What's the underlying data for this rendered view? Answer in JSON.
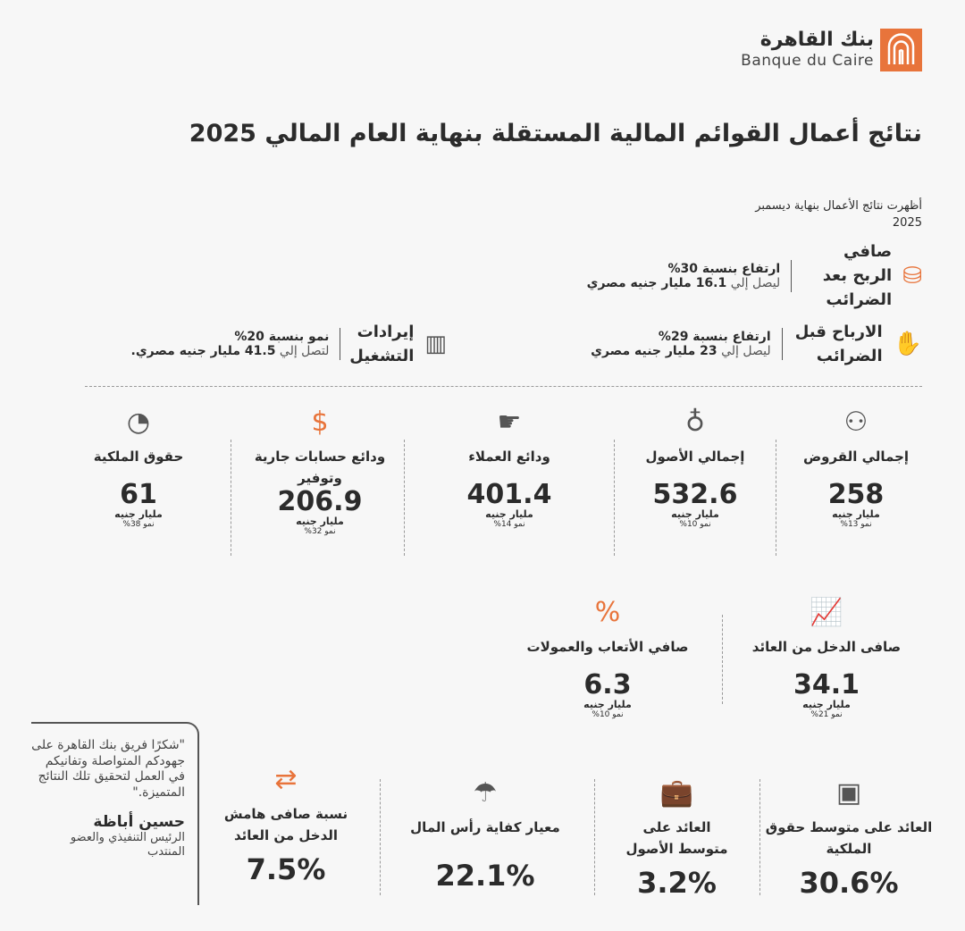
{
  "brand": {
    "name_ar": "بنك القاهرة",
    "name_en": "Banque du Caire",
    "color": "#e8743b"
  },
  "title": "نتائج أعمال القوائم المالية المستقلة بنهاية العام المالي 2025",
  "subtitle": {
    "line1": "أظهرت نتائج الأعمال بنهاية ديسمبر",
    "line2": "2025"
  },
  "highlights": [
    {
      "label": "صافي الربح بعد الضرائب",
      "icon": "coins-up-icon",
      "line1": "ارتفاع بنسبة 30%",
      "pre": "ليصل إلي",
      "amount": "16.1 مليار جنيه مصري"
    },
    {
      "label": "الارباح قبل الضرائب",
      "icon": "money-hand-icon",
      "line1": "ارتفاع بنسبة 29%",
      "pre": "ليصل إلي",
      "amount": "23 مليار جنيه مصري"
    },
    {
      "label": "إيرادات التشغيل",
      "icon": "bar-chart-icon",
      "line1": "نمو بنسبة 20%",
      "pre": "لتصل إلي",
      "amount": "41.5 مليار جنيه مصري."
    }
  ],
  "stats": [
    {
      "name": "إجمالي القروض",
      "icon": "people-icon",
      "value": "258",
      "unit": "مليار جنيه",
      "growth": "نمو 13%"
    },
    {
      "name": "إجمالي الأصول",
      "icon": "money-bag-icon",
      "value": "532.6",
      "unit": "مليار جنيه",
      "growth": "نمو 10%"
    },
    {
      "name": "ودائع العملاء",
      "icon": "deposit-hand-icon",
      "value": "401.4",
      "unit": "مليار جنيه",
      "growth": "نمو 14%"
    },
    {
      "name": "ودائع حسابات جارية وتوفير",
      "icon": "dollar-cycle-icon",
      "value": "206.9",
      "unit": "مليار جنيه",
      "growth": "نمو 32%"
    },
    {
      "name": "حقوق الملكية",
      "icon": "pie-chart-icon",
      "value": "61",
      "unit": "مليار جنيه",
      "growth": "نمو 38%"
    },
    {
      "name": "صافى الدخل من العائد",
      "icon": "line-chart-icon",
      "value": "34.1",
      "unit": "مليار جنيه",
      "growth": "نمو 21%"
    },
    {
      "name": "صافي الأتعاب والعمولات",
      "icon": "percent-hand-icon",
      "value": "6.3",
      "unit": "مليار جنيه",
      "growth": "نمو 10%"
    }
  ],
  "ratios": [
    {
      "name": "العائد على متوسط حقوق الملكية",
      "icon": "safe-icon",
      "value": "30.6%"
    },
    {
      "name": "العائد على متوسط الأصول",
      "icon": "briefcase-icon",
      "value": "3.2%"
    },
    {
      "name": "معيار كفاية رأس المال",
      "icon": "umbrella-icon",
      "value": "22.1%"
    },
    {
      "name": "نسبة صافى هامش الدخل من العائد",
      "icon": "exchange-icon",
      "value": "7.5%"
    }
  ],
  "quote": {
    "text": "\"شكرًا فريق بنك القاهرة على جهودكم المتواصلة وتفانيكم في العمل لتحقيق تلك النتائج المتميزة.\"",
    "name": "حسين أباظة",
    "role": "الرئيس التنفيذي والعضو المنتدب"
  }
}
